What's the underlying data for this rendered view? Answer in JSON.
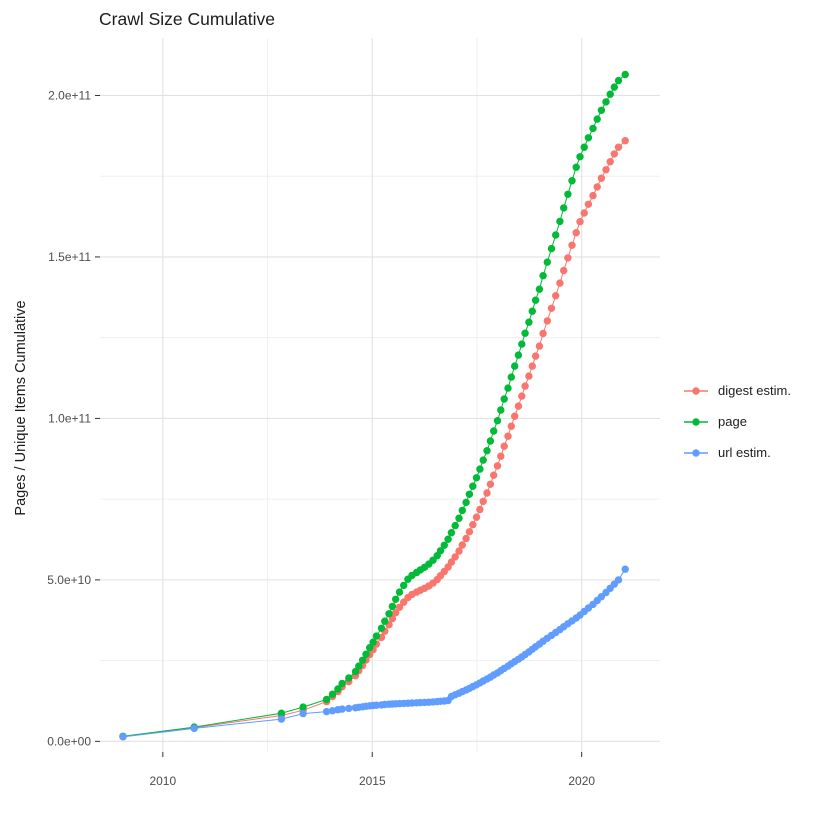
{
  "chart_data": {
    "type": "line",
    "title": "Crawl Size Cumulative",
    "xlabel": "",
    "ylabel": "Pages / Unique Items Cumulative",
    "grid": "on",
    "legend_position": "right",
    "value_scale": 1000000000.0,
    "x_axis": {
      "range": [
        2008.5,
        2021.87
      ],
      "ticks": [
        2010,
        2015,
        2020
      ],
      "tick_labels": [
        "2010",
        "2015",
        "2020"
      ]
    },
    "y_axis": {
      "range": [
        -3300000000.0,
        217800000000.0
      ],
      "ticks": [
        0,
        50000000000.0,
        100000000000.0,
        150000000000.0,
        200000000000.0
      ],
      "tick_labels": [
        "0.0e+00",
        "5.0e+10",
        "1.0e+11",
        "1.5e+11",
        "2.0e+11"
      ]
    },
    "colors": {
      "grid_major": "#e2e2e2",
      "grid_minor": "#efefef",
      "tick": "#333333",
      "tick_label": "#4d4d4d",
      "text": "#1c1c1c"
    },
    "series": [
      {
        "name": "digest estim.",
        "color": "#F8766D",
        "points_unit": "billions",
        "points": [
          [
            2009.05,
            1.45
          ],
          [
            2010.75,
            4.25
          ],
          [
            2012.83,
            8.0
          ],
          [
            2013.35,
            9.6
          ],
          [
            2013.91,
            12.3
          ],
          [
            2014.05,
            13.9
          ],
          [
            2014.18,
            15.4
          ],
          [
            2014.28,
            16.9
          ],
          [
            2014.44,
            18.5
          ],
          [
            2014.6,
            20.3
          ],
          [
            2014.68,
            21.9
          ],
          [
            2014.77,
            23.5
          ],
          [
            2014.85,
            25.2
          ],
          [
            2014.94,
            26.9
          ],
          [
            2015.02,
            28.4
          ],
          [
            2015.1,
            30.1
          ],
          [
            2015.22,
            32.2
          ],
          [
            2015.3,
            34.1
          ],
          [
            2015.4,
            36.1
          ],
          [
            2015.48,
            38.0
          ],
          [
            2015.56,
            39.8
          ],
          [
            2015.65,
            41.5
          ],
          [
            2015.75,
            43.1
          ],
          [
            2015.85,
            44.5
          ],
          [
            2015.95,
            45.5
          ],
          [
            2016.06,
            46.2
          ],
          [
            2016.15,
            46.8
          ],
          [
            2016.25,
            47.4
          ],
          [
            2016.35,
            48.1
          ],
          [
            2016.45,
            49.0
          ],
          [
            2016.55,
            50.1
          ],
          [
            2016.63,
            51.3
          ],
          [
            2016.72,
            52.6
          ],
          [
            2016.81,
            54.0
          ],
          [
            2016.89,
            55.5
          ],
          [
            2016.98,
            57.1
          ],
          [
            2017.07,
            58.9
          ],
          [
            2017.15,
            60.8
          ],
          [
            2017.24,
            62.8
          ],
          [
            2017.32,
            64.9
          ],
          [
            2017.4,
            67.1
          ],
          [
            2017.49,
            69.4
          ],
          [
            2017.57,
            71.8
          ],
          [
            2017.65,
            74.3
          ],
          [
            2017.74,
            76.9
          ],
          [
            2017.82,
            79.6
          ],
          [
            2017.9,
            82.4
          ],
          [
            2017.99,
            85.3
          ],
          [
            2018.07,
            88.3
          ],
          [
            2018.15,
            91.4
          ],
          [
            2018.24,
            94.5
          ],
          [
            2018.32,
            97.6
          ],
          [
            2018.4,
            100.7
          ],
          [
            2018.49,
            103.8
          ],
          [
            2018.57,
            106.9
          ],
          [
            2018.65,
            110.0
          ],
          [
            2018.74,
            113.1
          ],
          [
            2018.82,
            116.2
          ],
          [
            2018.9,
            119.3
          ],
          [
            2018.99,
            122.4
          ],
          [
            2019.08,
            126.3
          ],
          [
            2019.18,
            130.2
          ],
          [
            2019.28,
            134.1
          ],
          [
            2019.38,
            138.0
          ],
          [
            2019.48,
            141.9
          ],
          [
            2019.57,
            145.8
          ],
          [
            2019.67,
            149.7
          ],
          [
            2019.77,
            153.6
          ],
          [
            2019.87,
            157.5
          ],
          [
            2019.96,
            160.9
          ],
          [
            2020.06,
            163.6
          ],
          [
            2020.16,
            166.3
          ],
          [
            2020.27,
            169.0
          ],
          [
            2020.37,
            171.7
          ],
          [
            2020.47,
            174.4
          ],
          [
            2020.58,
            177.0
          ],
          [
            2020.68,
            179.5
          ],
          [
            2020.78,
            181.9
          ],
          [
            2020.88,
            184.0
          ],
          [
            2021.04,
            186.0
          ]
        ]
      },
      {
        "name": "page",
        "color": "#00BA38",
        "points_unit": "billions",
        "points": [
          [
            2009.05,
            1.55
          ],
          [
            2010.75,
            4.4
          ],
          [
            2012.83,
            8.7
          ],
          [
            2013.35,
            10.6
          ],
          [
            2013.91,
            13.0
          ],
          [
            2014.05,
            14.6
          ],
          [
            2014.18,
            16.2
          ],
          [
            2014.28,
            17.9
          ],
          [
            2014.44,
            19.6
          ],
          [
            2014.6,
            21.6
          ],
          [
            2014.68,
            23.3
          ],
          [
            2014.77,
            25.1
          ],
          [
            2014.85,
            27.0
          ],
          [
            2014.94,
            29.0
          ],
          [
            2015.02,
            30.7
          ],
          [
            2015.1,
            32.6
          ],
          [
            2015.22,
            35.0
          ],
          [
            2015.3,
            37.2
          ],
          [
            2015.4,
            39.5
          ],
          [
            2015.48,
            41.8
          ],
          [
            2015.56,
            44.0
          ],
          [
            2015.65,
            46.2
          ],
          [
            2015.75,
            48.3
          ],
          [
            2015.85,
            50.2
          ],
          [
            2015.95,
            51.4
          ],
          [
            2016.06,
            52.3
          ],
          [
            2016.15,
            53.1
          ],
          [
            2016.25,
            53.9
          ],
          [
            2016.35,
            54.9
          ],
          [
            2016.45,
            56.1
          ],
          [
            2016.55,
            57.5
          ],
          [
            2016.63,
            59.0
          ],
          [
            2016.72,
            60.7
          ],
          [
            2016.81,
            62.6
          ],
          [
            2016.89,
            64.6
          ],
          [
            2016.98,
            66.8
          ],
          [
            2017.07,
            69.1
          ],
          [
            2017.15,
            71.5
          ],
          [
            2017.24,
            74.0
          ],
          [
            2017.32,
            76.5
          ],
          [
            2017.4,
            79.0
          ],
          [
            2017.49,
            81.6
          ],
          [
            2017.57,
            84.3
          ],
          [
            2017.65,
            87.1
          ],
          [
            2017.74,
            90.0
          ],
          [
            2017.82,
            93.0
          ],
          [
            2017.9,
            96.1
          ],
          [
            2017.99,
            99.3
          ],
          [
            2018.07,
            102.6
          ],
          [
            2018.15,
            106.0
          ],
          [
            2018.24,
            109.4
          ],
          [
            2018.32,
            112.8
          ],
          [
            2018.4,
            116.2
          ],
          [
            2018.49,
            119.6
          ],
          [
            2018.57,
            123.0
          ],
          [
            2018.65,
            126.4
          ],
          [
            2018.74,
            129.8
          ],
          [
            2018.82,
            133.2
          ],
          [
            2018.9,
            136.6
          ],
          [
            2018.99,
            140.0
          ],
          [
            2019.08,
            144.2
          ],
          [
            2019.18,
            148.4
          ],
          [
            2019.28,
            152.6
          ],
          [
            2019.38,
            156.8
          ],
          [
            2019.48,
            161.0
          ],
          [
            2019.57,
            165.2
          ],
          [
            2019.67,
            169.4
          ],
          [
            2019.77,
            173.6
          ],
          [
            2019.87,
            177.8
          ],
          [
            2019.96,
            181.0
          ],
          [
            2020.06,
            184.0
          ],
          [
            2020.16,
            186.9
          ],
          [
            2020.27,
            189.8
          ],
          [
            2020.37,
            192.7
          ],
          [
            2020.47,
            195.4
          ],
          [
            2020.58,
            198.0
          ],
          [
            2020.68,
            200.4
          ],
          [
            2020.78,
            202.6
          ],
          [
            2020.88,
            204.6
          ],
          [
            2021.04,
            206.5
          ]
        ]
      },
      {
        "name": "url estim.",
        "color": "#619CFF",
        "points_unit": "billions",
        "points": [
          [
            2009.05,
            1.4
          ],
          [
            2010.75,
            4.0
          ],
          [
            2012.83,
            6.9
          ],
          [
            2013.35,
            8.6
          ],
          [
            2013.91,
            9.2
          ],
          [
            2014.05,
            9.5
          ],
          [
            2014.18,
            9.8
          ],
          [
            2014.28,
            10.0
          ],
          [
            2014.44,
            10.2
          ],
          [
            2014.6,
            10.4
          ],
          [
            2014.68,
            10.55
          ],
          [
            2014.77,
            10.7
          ],
          [
            2014.85,
            10.85
          ],
          [
            2014.94,
            11.0
          ],
          [
            2015.02,
            11.1
          ],
          [
            2015.1,
            11.2
          ],
          [
            2015.22,
            11.3
          ],
          [
            2015.3,
            11.4
          ],
          [
            2015.4,
            11.5
          ],
          [
            2015.48,
            11.57
          ],
          [
            2015.56,
            11.64
          ],
          [
            2015.65,
            11.7
          ],
          [
            2015.75,
            11.76
          ],
          [
            2015.85,
            11.82
          ],
          [
            2015.95,
            11.88
          ],
          [
            2016.06,
            11.94
          ],
          [
            2016.15,
            12.0
          ],
          [
            2016.25,
            12.06
          ],
          [
            2016.35,
            12.13
          ],
          [
            2016.45,
            12.2
          ],
          [
            2016.55,
            12.3
          ],
          [
            2016.63,
            12.4
          ],
          [
            2016.72,
            12.5
          ],
          [
            2016.81,
            12.65
          ],
          [
            2016.89,
            13.9
          ],
          [
            2016.98,
            14.4
          ],
          [
            2017.07,
            14.9
          ],
          [
            2017.15,
            15.4
          ],
          [
            2017.24,
            15.9
          ],
          [
            2017.32,
            16.4
          ],
          [
            2017.4,
            16.95
          ],
          [
            2017.49,
            17.5
          ],
          [
            2017.57,
            18.1
          ],
          [
            2017.65,
            18.7
          ],
          [
            2017.74,
            19.3
          ],
          [
            2017.82,
            19.9
          ],
          [
            2017.9,
            20.55
          ],
          [
            2017.99,
            21.2
          ],
          [
            2018.07,
            21.9
          ],
          [
            2018.15,
            22.6
          ],
          [
            2018.24,
            23.3
          ],
          [
            2018.32,
            24.0
          ],
          [
            2018.4,
            24.7
          ],
          [
            2018.49,
            25.4
          ],
          [
            2018.57,
            26.15
          ],
          [
            2018.65,
            26.9
          ],
          [
            2018.74,
            27.7
          ],
          [
            2018.82,
            28.5
          ],
          [
            2018.9,
            29.3
          ],
          [
            2018.99,
            30.1
          ],
          [
            2019.08,
            31.0
          ],
          [
            2019.18,
            31.9
          ],
          [
            2019.28,
            32.8
          ],
          [
            2019.38,
            33.7
          ],
          [
            2019.48,
            34.6
          ],
          [
            2019.57,
            35.5
          ],
          [
            2019.67,
            36.4
          ],
          [
            2019.77,
            37.3
          ],
          [
            2019.87,
            38.2
          ],
          [
            2019.96,
            39.1
          ],
          [
            2020.06,
            40.2
          ],
          [
            2020.16,
            41.3
          ],
          [
            2020.27,
            42.4
          ],
          [
            2020.37,
            43.6
          ],
          [
            2020.47,
            44.8
          ],
          [
            2020.58,
            46.1
          ],
          [
            2020.68,
            47.4
          ],
          [
            2020.78,
            48.7
          ],
          [
            2020.88,
            50.0
          ],
          [
            2021.04,
            53.3
          ]
        ]
      }
    ]
  }
}
